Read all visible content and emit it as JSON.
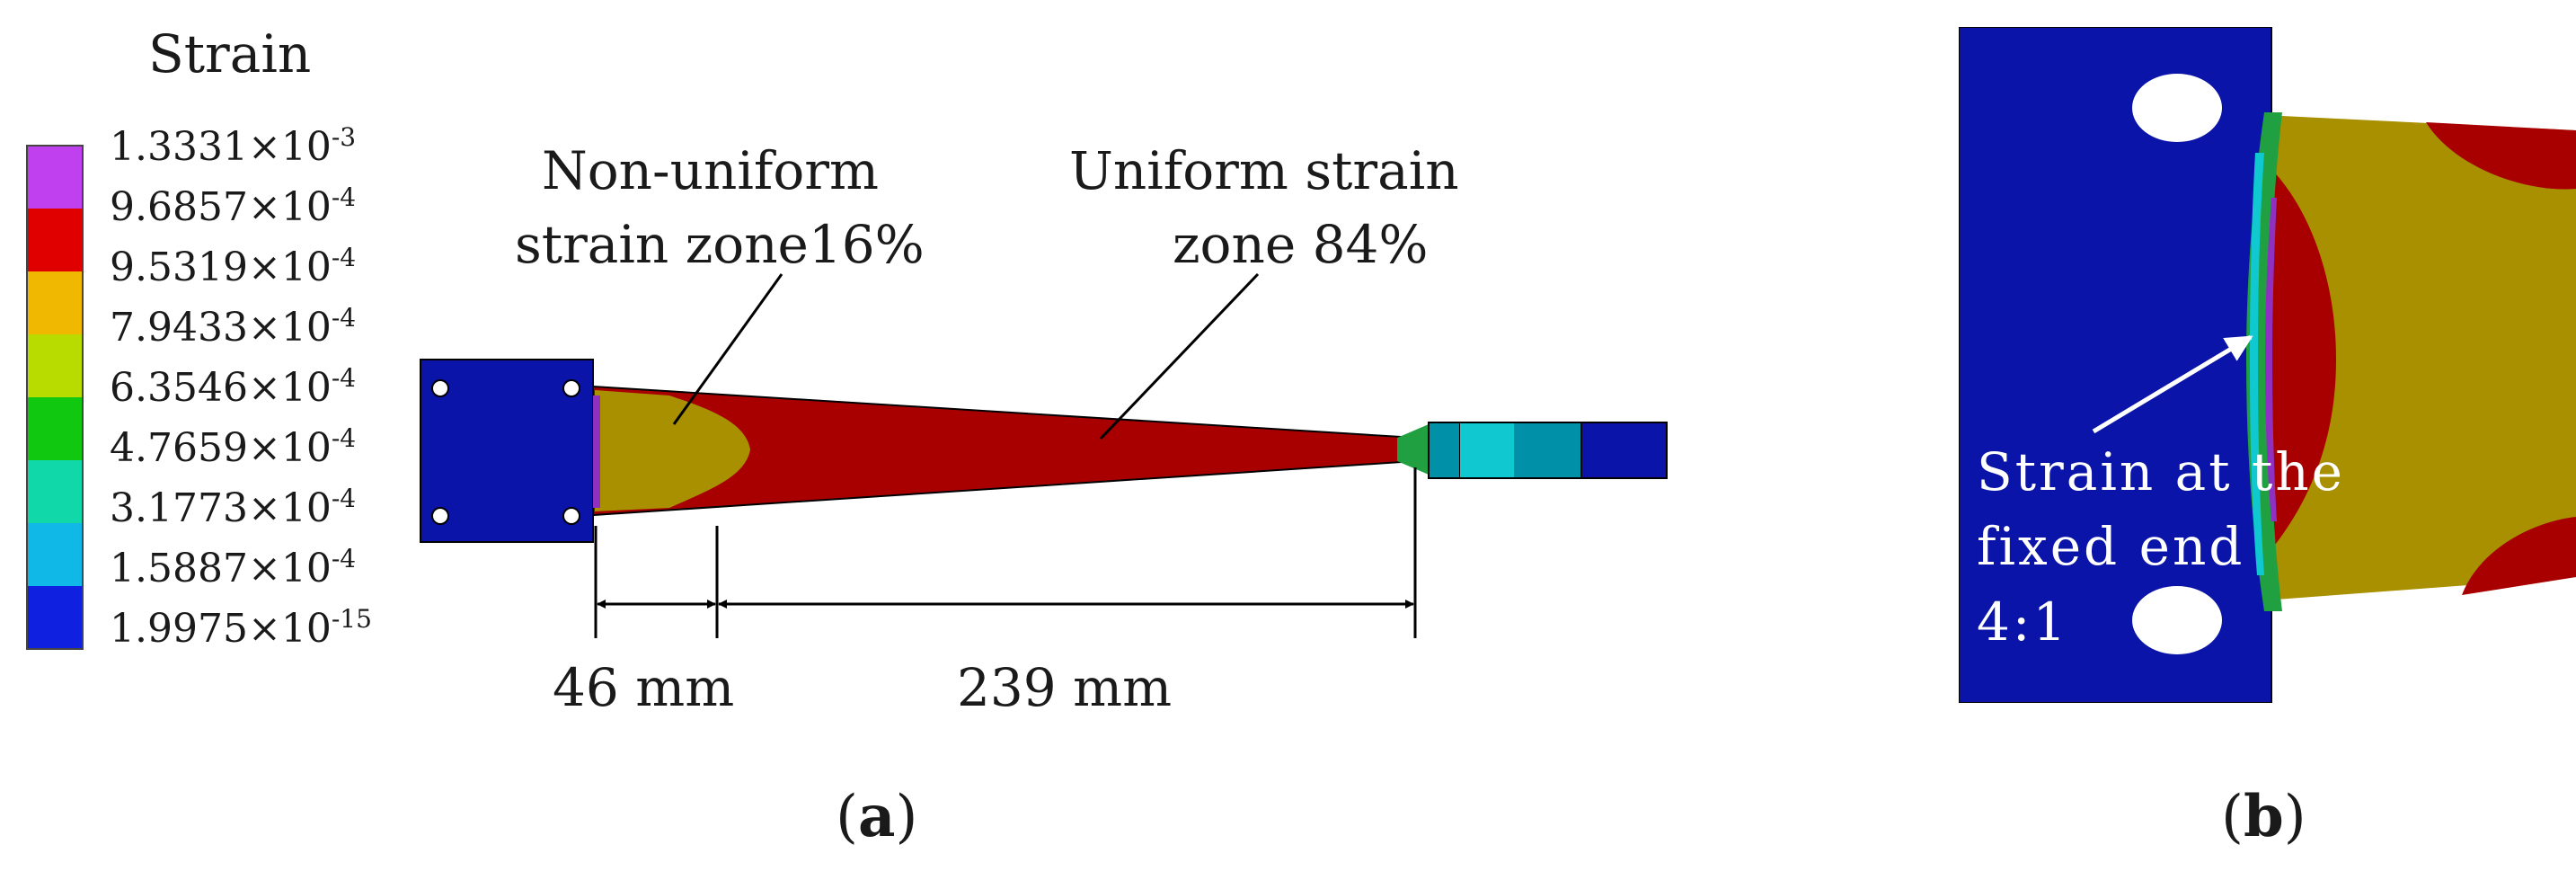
{
  "legend": {
    "title": "Strain",
    "entries": [
      {
        "mantissa": "1.3331×10",
        "exp": "-3"
      },
      {
        "mantissa": "9.6857×10",
        "exp": "-4"
      },
      {
        "mantissa": "9.5319×10",
        "exp": "-4"
      },
      {
        "mantissa": "7.9433×10",
        "exp": "-4"
      },
      {
        "mantissa": "6.3546×10",
        "exp": "-4"
      },
      {
        "mantissa": "4.7659×10",
        "exp": "-4"
      },
      {
        "mantissa": "3.1773×10",
        "exp": "-4"
      },
      {
        "mantissa": "1.5887×10",
        "exp": "-4"
      },
      {
        "mantissa": "1.9975×10",
        "exp": "-15"
      }
    ],
    "colors": [
      "#c040f0",
      "#e00000",
      "#f0b800",
      "#b8dc00",
      "#10c810",
      "#10d8a8",
      "#10b8e8",
      "#1020e0"
    ]
  },
  "panel_a": {
    "annotation_nonuniform": [
      "Non-uniform",
      "strain zone16%"
    ],
    "annotation_uniform": [
      "Uniform strain",
      "zone 84%"
    ],
    "dim_left": "46 mm",
    "dim_right": "239 mm",
    "label_open": "(",
    "label_letter": "a",
    "label_close": ")"
  },
  "panel_b": {
    "annotation": [
      "Strain at the",
      "fixed end",
      "4:1"
    ],
    "label_open": "(",
    "label_letter": "b",
    "label_close": ")"
  },
  "fea_colors": {
    "plate": "#0a14a8",
    "red": "#a80000",
    "olive": "#a89000",
    "teal": "#0090a8",
    "cyan": "#10c8d0",
    "green": "#20a040",
    "magenta": "#9030c0"
  }
}
